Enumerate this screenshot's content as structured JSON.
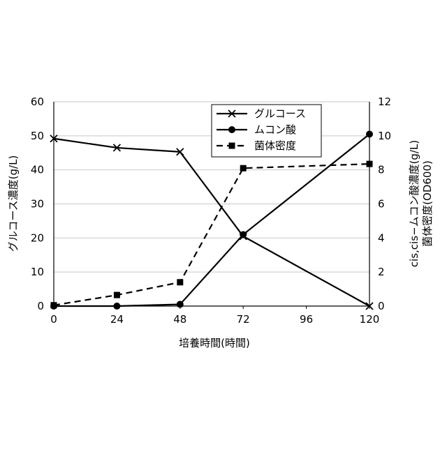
{
  "chart_data": {
    "type": "line",
    "title": "",
    "xlabel": "培養時間(時間)",
    "ylabel_left": "グルコース濃度(g/L)",
    "ylabel_right_line1": "cis,cis−ムコン酸濃度(g/L)",
    "ylabel_right_line2": "菌体密度(OD600)",
    "x_ticks": [
      0,
      24,
      48,
      72,
      96,
      120
    ],
    "xlim": [
      0,
      120
    ],
    "ylim_left": [
      0,
      60
    ],
    "y_left_ticks": [
      0,
      10,
      20,
      30,
      40,
      50,
      60
    ],
    "ylim_right": [
      0,
      12
    ],
    "y_right_ticks": [
      0,
      2,
      4,
      6,
      8,
      10,
      12
    ],
    "grid": true,
    "legend_position": "top-right",
    "series": [
      {
        "name": "グルコース",
        "axis": "left",
        "marker": "x",
        "line": "solid",
        "x": [
          0,
          24,
          48,
          72,
          120
        ],
        "y": [
          49.2,
          46.5,
          45.3,
          20.5,
          0
        ]
      },
      {
        "name": "ムコン酸",
        "axis": "right",
        "marker": "circle",
        "line": "solid",
        "x": [
          0,
          24,
          48,
          72,
          120
        ],
        "y": [
          0.0,
          0.0,
          0.1,
          4.2,
          10.1
        ]
      },
      {
        "name": "菌体密度",
        "axis": "right",
        "marker": "square",
        "line": "dashed",
        "x": [
          0,
          24,
          48,
          72,
          120
        ],
        "y": [
          0.05,
          0.65,
          1.4,
          8.1,
          8.35
        ]
      }
    ]
  }
}
